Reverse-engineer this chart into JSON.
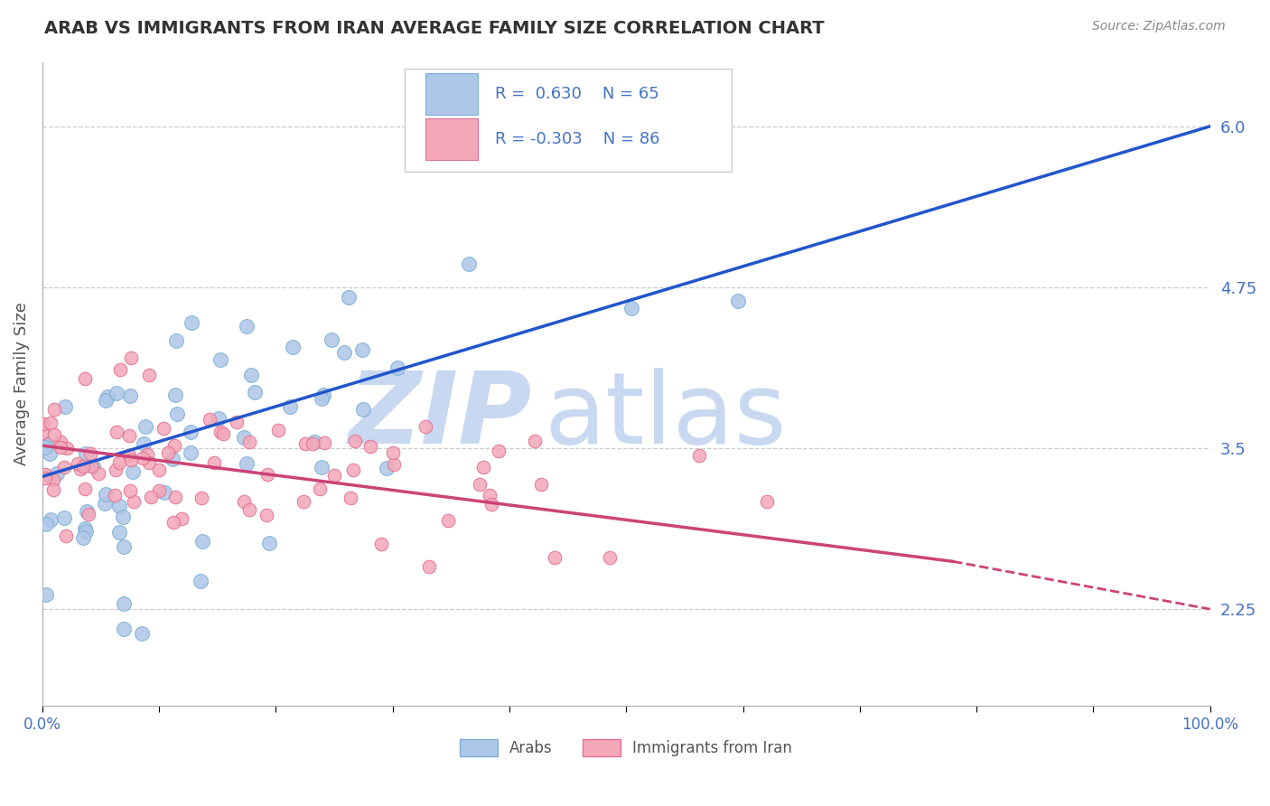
{
  "title": "ARAB VS IMMIGRANTS FROM IRAN AVERAGE FAMILY SIZE CORRELATION CHART",
  "source_text": "Source: ZipAtlas.com",
  "ylabel": "Average Family Size",
  "xlim": [
    0,
    1
  ],
  "ylim": [
    1.5,
    6.5
  ],
  "yticks": [
    2.25,
    3.5,
    4.75,
    6.0
  ],
  "xticks": [
    0.0,
    0.1,
    0.2,
    0.3,
    0.4,
    0.5,
    0.6,
    0.7,
    0.8,
    0.9,
    1.0
  ],
  "xticklabels": [
    "0.0%",
    "",
    "",
    "",
    "",
    "",
    "",
    "",
    "",
    "",
    "100.0%"
  ],
  "title_color": "#333333",
  "title_fontsize": 14,
  "axis_label_color": "#555555",
  "tick_color_y": "#4472c4",
  "tick_color_x": "#4472c4",
  "grid_color": "#cccccc",
  "grid_linestyle": "--",
  "watermark_zip": "ZIP",
  "watermark_atlas": "atlas",
  "watermark_color": "#c8d8f0",
  "legend_r1": "R =  0.630",
  "legend_n1": "N = 65",
  "legend_r2": "R = -0.303",
  "legend_n2": "N = 86",
  "legend_color1": "#aec6e8",
  "legend_color2": "#f4a7b9",
  "legend_text_color": "#4472c4",
  "series1_color": "#aec6e8",
  "series1_edge": "#7bafd4",
  "series2_color": "#f4a7b9",
  "series2_edge": "#e07090",
  "trend1_color": "#2255cc",
  "trend2_color": "#cc4477",
  "trend2_dashed_color": "#cc4477",
  "R1": 0.63,
  "N1": 65,
  "R2": -0.303,
  "N2": 86,
  "trend1_y0": 3.28,
  "trend1_y1": 6.0,
  "trend2_y0": 3.52,
  "trend2_y1_solid": 2.62,
  "trend2_x1_solid": 0.78,
  "trend2_y1_dashed": 2.25,
  "figsize": [
    14.06,
    8.92
  ],
  "dpi": 100,
  "bg_color": "#ffffff"
}
